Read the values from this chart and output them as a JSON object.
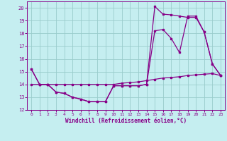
{
  "title": "",
  "xlabel": "Windchill (Refroidissement éolien,°C)",
  "bg_color": "#c5eef0",
  "grid_color": "#99cccc",
  "line_color": "#880088",
  "xlim": [
    -0.5,
    23.5
  ],
  "ylim": [
    12,
    20.5
  ],
  "xticks": [
    0,
    1,
    2,
    3,
    4,
    5,
    6,
    7,
    8,
    9,
    10,
    11,
    12,
    13,
    14,
    15,
    16,
    17,
    18,
    19,
    20,
    21,
    22,
    23
  ],
  "yticks": [
    12,
    13,
    14,
    15,
    16,
    17,
    18,
    19,
    20
  ],
  "line1_x": [
    0,
    1,
    2,
    3,
    4,
    5,
    6,
    7,
    8,
    9,
    10,
    11,
    12,
    13,
    14,
    15,
    16,
    17,
    18,
    19,
    20,
    21,
    22,
    23
  ],
  "line1_y": [
    15.2,
    14.0,
    14.0,
    13.4,
    13.3,
    13.0,
    12.85,
    12.65,
    12.65,
    12.65,
    13.9,
    13.9,
    13.9,
    13.9,
    14.0,
    20.1,
    19.5,
    19.45,
    19.35,
    19.25,
    19.25,
    18.1,
    15.6,
    14.7
  ],
  "line2_x": [
    0,
    1,
    2,
    3,
    4,
    5,
    6,
    7,
    8,
    9,
    10,
    11,
    12,
    13,
    14,
    15,
    16,
    17,
    18,
    19,
    20,
    21,
    22,
    23
  ],
  "line2_y": [
    15.2,
    14.0,
    14.0,
    13.4,
    13.3,
    13.0,
    12.85,
    12.65,
    12.65,
    12.65,
    13.9,
    13.9,
    13.9,
    13.9,
    14.0,
    18.2,
    18.3,
    17.6,
    16.5,
    19.35,
    19.35,
    18.1,
    15.6,
    14.7
  ],
  "line3_x": [
    0,
    1,
    2,
    3,
    4,
    5,
    6,
    7,
    8,
    9,
    10,
    11,
    12,
    13,
    14,
    15,
    16,
    17,
    18,
    19,
    20,
    21,
    22,
    23
  ],
  "line3_y": [
    14.0,
    14.0,
    14.0,
    14.0,
    14.0,
    14.0,
    14.0,
    14.0,
    14.0,
    14.0,
    14.0,
    14.1,
    14.15,
    14.2,
    14.3,
    14.4,
    14.5,
    14.55,
    14.6,
    14.7,
    14.75,
    14.8,
    14.85,
    14.7
  ]
}
